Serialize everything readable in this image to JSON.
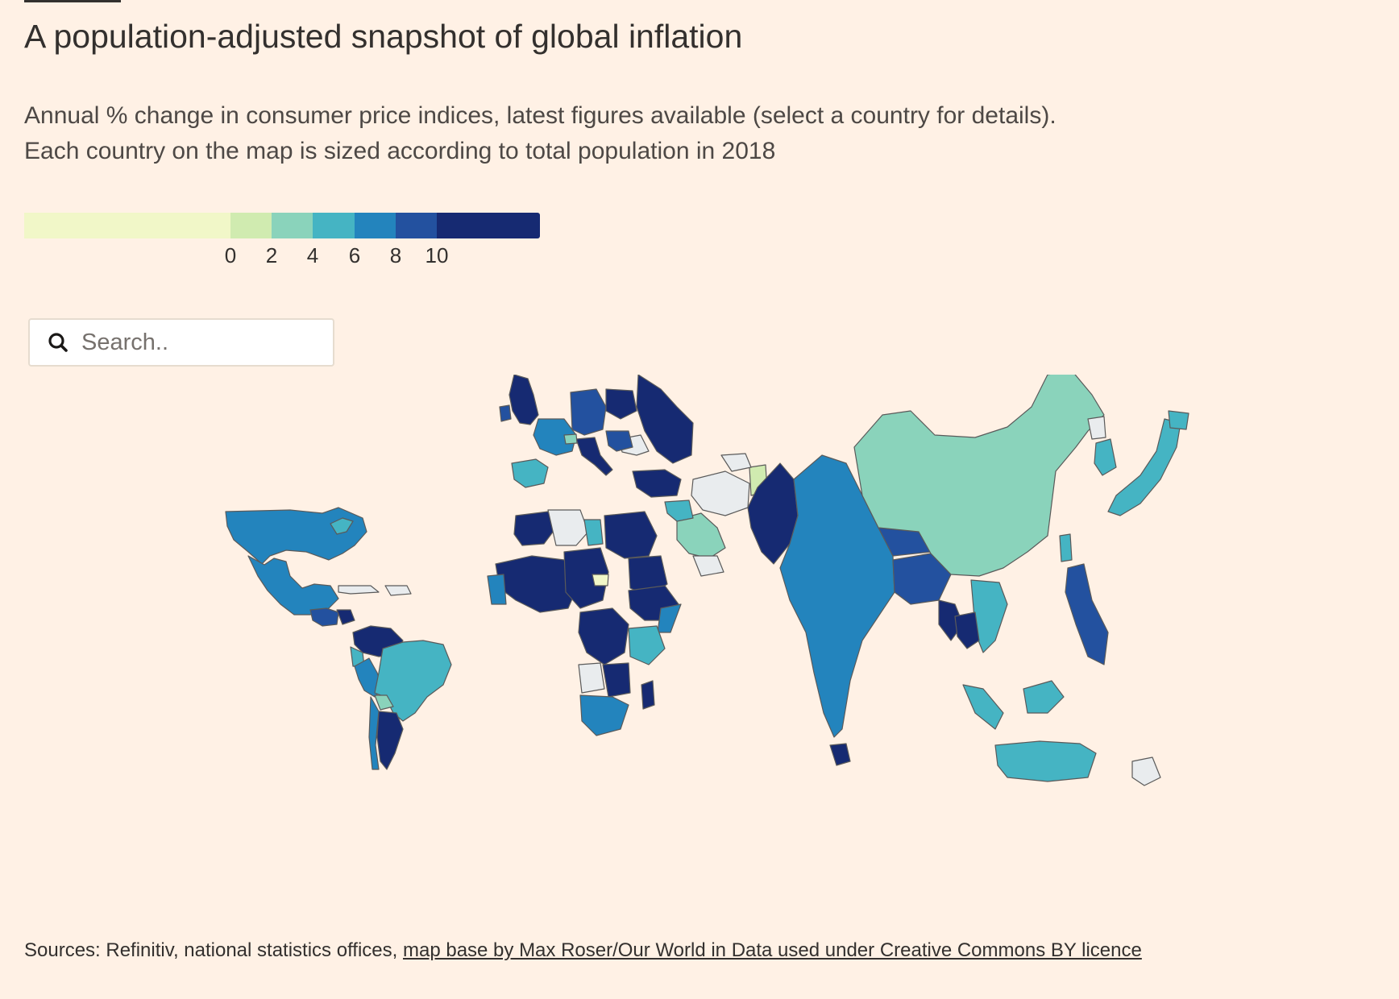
{
  "header": {
    "title": "A population-adjusted snapshot of global inflation",
    "subtitle_line1": "Annual % change in consumer price indices, latest figures available (select a country for details).",
    "subtitle_line2": "Each country on the map is sized according to total population in 2018"
  },
  "legend": {
    "colors": [
      "#f1f7c8",
      "#d0ebb0",
      "#8ad3bb",
      "#45b4c3",
      "#2384bd",
      "#23519f",
      "#162a72"
    ],
    "ticks": [
      "0",
      "2",
      "4",
      "6",
      "8",
      "10"
    ],
    "no_data_color": "#e9ecee"
  },
  "search": {
    "placeholder": "Search..",
    "icon": "search-icon"
  },
  "footer": {
    "sources_prefix": "Sources: Refinitiv, national statistics offices, ",
    "link_text": "map base by Max Roser/Our World in Data used under Creative Commons BY licence"
  }
}
